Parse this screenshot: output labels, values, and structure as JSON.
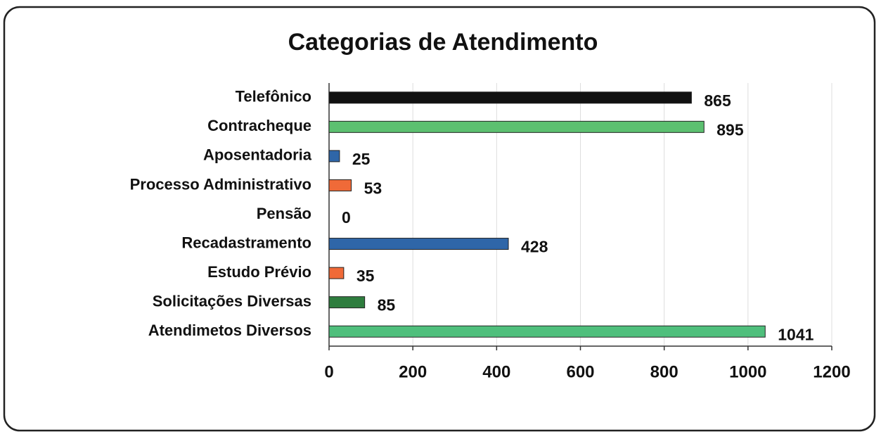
{
  "chart_data": {
    "type": "hbar",
    "title": "Categorias de Atendimento",
    "categories": [
      "Telefônico",
      "Contracheque",
      "Aposentadoria",
      "Processo Administrativo",
      "Pensão",
      "Recadastramento",
      "Estudo Prévio",
      "Solicitações Diversas",
      "Atendimetos Diversos"
    ],
    "values": [
      865,
      895,
      25,
      53,
      0,
      428,
      35,
      85,
      1041
    ],
    "colors": [
      "#111111",
      "#5cc070",
      "#2f66a8",
      "#f06a38",
      "#888888",
      "#2f66a8",
      "#f06a38",
      "#2e7d3e",
      "#4fbf7c"
    ],
    "xlim": [
      0,
      1200
    ],
    "xticks": [
      0,
      200,
      400,
      600,
      800,
      1000,
      1200
    ],
    "grid": true
  }
}
